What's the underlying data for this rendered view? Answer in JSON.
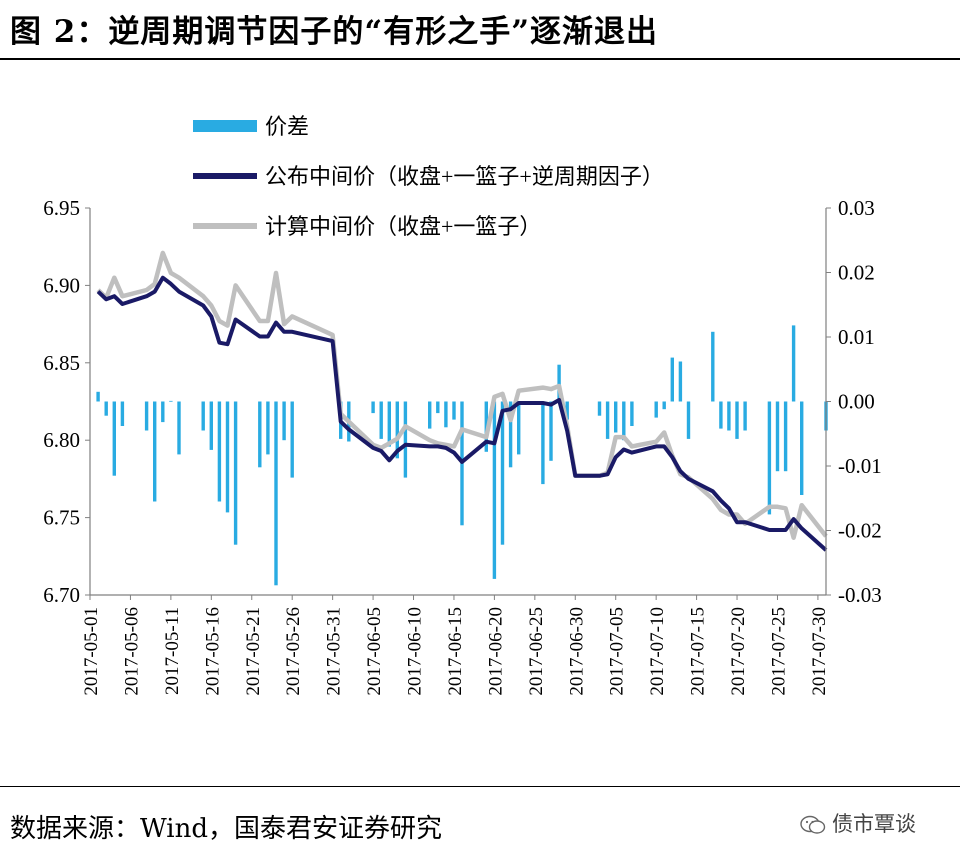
{
  "figure": {
    "title": "图 2：逆周期调节因子的“有形之手”逐渐退出",
    "source": "数据来源：Wind，国泰君安证券研究",
    "watermark": "债市覃谈",
    "watermark_icon": "wechat-icon"
  },
  "chart_data": {
    "type": "line",
    "title": "",
    "left_axis": {
      "ylim": [
        6.7,
        6.95
      ],
      "ticks": [
        "6.70",
        "6.75",
        "6.80",
        "6.85",
        "6.90",
        "6.95"
      ]
    },
    "right_axis": {
      "ylim": [
        -0.03,
        0.03
      ],
      "ticks": [
        "-0.03",
        "-0.02",
        "-0.01",
        "0.00",
        "0.01",
        "0.02",
        "0.03"
      ]
    },
    "x_tick_labels": [
      "2017-05-01",
      "2017-05-06",
      "2017-05-11",
      "2017-05-16",
      "2017-05-21",
      "2017-05-26",
      "2017-05-31",
      "2017-06-05",
      "2017-06-10",
      "2017-06-15",
      "2017-06-20",
      "2017-06-25",
      "2017-06-30",
      "2017-07-05",
      "2017-07-10",
      "2017-07-15",
      "2017-07-20",
      "2017-07-25",
      "2017-07-30"
    ],
    "x_range": [
      "2017-05-01",
      "2017-07-31"
    ],
    "legend_position": "top-left",
    "grid": false,
    "colors": {
      "bar": "#29ABE2",
      "published": "#1A1A66",
      "computed": "#BFBFBF"
    },
    "series": [
      {
        "name": "价差",
        "type": "bar",
        "axis": "right",
        "points": [
          [
            "2017-05-02",
            0.0015
          ],
          [
            "2017-05-03",
            -0.0022
          ],
          [
            "2017-05-04",
            -0.0115
          ],
          [
            "2017-05-05",
            -0.0038
          ],
          [
            "2017-05-08",
            -0.0045
          ],
          [
            "2017-05-09",
            -0.0155
          ],
          [
            "2017-05-10",
            -0.0032
          ],
          [
            "2017-05-11",
            0.0001
          ],
          [
            "2017-05-12",
            -0.0082
          ],
          [
            "2017-05-15",
            -0.0045
          ],
          [
            "2017-05-16",
            -0.0075
          ],
          [
            "2017-05-17",
            -0.0155
          ],
          [
            "2017-05-18",
            -0.0172
          ],
          [
            "2017-05-19",
            -0.0222
          ],
          [
            "2017-05-22",
            -0.0102
          ],
          [
            "2017-05-23",
            -0.0082
          ],
          [
            "2017-05-24",
            -0.0285
          ],
          [
            "2017-05-25",
            -0.006
          ],
          [
            "2017-05-26",
            -0.0118
          ],
          [
            "2017-06-01",
            -0.0058
          ],
          [
            "2017-06-02",
            -0.0062
          ],
          [
            "2017-06-05",
            -0.0018
          ],
          [
            "2017-06-06",
            -0.0058
          ],
          [
            "2017-06-07",
            -0.007
          ],
          [
            "2017-06-08",
            -0.0088
          ],
          [
            "2017-06-09",
            -0.0118
          ],
          [
            "2017-06-12",
            -0.0042
          ],
          [
            "2017-06-13",
            -0.0018
          ],
          [
            "2017-06-14",
            -0.004
          ],
          [
            "2017-06-15",
            -0.0028
          ],
          [
            "2017-06-16",
            -0.0192
          ],
          [
            "2017-06-19",
            -0.0078
          ],
          [
            "2017-06-20",
            -0.0275
          ],
          [
            "2017-06-21",
            -0.0222
          ],
          [
            "2017-06-22",
            -0.0102
          ],
          [
            "2017-06-23",
            -0.0082
          ],
          [
            "2017-06-26",
            -0.0128
          ],
          [
            "2017-06-27",
            -0.0092
          ],
          [
            "2017-06-28",
            0.0057
          ],
          [
            "2017-06-29",
            -0.0028
          ],
          [
            "2017-07-03",
            -0.0022
          ],
          [
            "2017-07-04",
            -0.0058
          ],
          [
            "2017-07-05",
            -0.0048
          ],
          [
            "2017-07-06",
            -0.006
          ],
          [
            "2017-07-07",
            -0.0038
          ],
          [
            "2017-07-10",
            -0.0025
          ],
          [
            "2017-07-11",
            -0.0012
          ],
          [
            "2017-07-12",
            0.0068
          ],
          [
            "2017-07-13",
            0.0062
          ],
          [
            "2017-07-14",
            -0.0058
          ],
          [
            "2017-07-17",
            0.0108
          ],
          [
            "2017-07-18",
            -0.0042
          ],
          [
            "2017-07-19",
            -0.0045
          ],
          [
            "2017-07-20",
            -0.0058
          ],
          [
            "2017-07-21",
            -0.0045
          ],
          [
            "2017-07-24",
            -0.0175
          ],
          [
            "2017-07-25",
            -0.0108
          ],
          [
            "2017-07-26",
            -0.0108
          ],
          [
            "2017-07-27",
            0.0118
          ],
          [
            "2017-07-28",
            -0.0145
          ],
          [
            "2017-07-31",
            -0.0045
          ]
        ]
      },
      {
        "name": "公布中间价（收盘+一篮子+逆周期因子）",
        "type": "line",
        "axis": "left",
        "points": [
          [
            "2017-05-02",
            6.896
          ],
          [
            "2017-05-03",
            6.891
          ],
          [
            "2017-05-04",
            6.893
          ],
          [
            "2017-05-05",
            6.888
          ],
          [
            "2017-05-08",
            6.893
          ],
          [
            "2017-05-09",
            6.896
          ],
          [
            "2017-05-10",
            6.905
          ],
          [
            "2017-05-11",
            6.901
          ],
          [
            "2017-05-12",
            6.896
          ],
          [
            "2017-05-15",
            6.887
          ],
          [
            "2017-05-16",
            6.88
          ],
          [
            "2017-05-17",
            6.863
          ],
          [
            "2017-05-18",
            6.862
          ],
          [
            "2017-05-19",
            6.878
          ],
          [
            "2017-05-22",
            6.867
          ],
          [
            "2017-05-23",
            6.867
          ],
          [
            "2017-05-24",
            6.876
          ],
          [
            "2017-05-25",
            6.87
          ],
          [
            "2017-05-26",
            6.87
          ],
          [
            "2017-05-31",
            6.864
          ],
          [
            "2017-06-01",
            6.812
          ],
          [
            "2017-06-02",
            6.807
          ],
          [
            "2017-06-05",
            6.795
          ],
          [
            "2017-06-06",
            6.793
          ],
          [
            "2017-06-07",
            6.787
          ],
          [
            "2017-06-08",
            6.793
          ],
          [
            "2017-06-09",
            6.797
          ],
          [
            "2017-06-12",
            6.796
          ],
          [
            "2017-06-13",
            6.796
          ],
          [
            "2017-06-14",
            6.795
          ],
          [
            "2017-06-15",
            6.792
          ],
          [
            "2017-06-16",
            6.786
          ],
          [
            "2017-06-19",
            6.799
          ],
          [
            "2017-06-20",
            6.798
          ],
          [
            "2017-06-21",
            6.819
          ],
          [
            "2017-06-22",
            6.82
          ],
          [
            "2017-06-23",
            6.824
          ],
          [
            "2017-06-26",
            6.824
          ],
          [
            "2017-06-27",
            6.823
          ],
          [
            "2017-06-28",
            6.826
          ],
          [
            "2017-06-29",
            6.806
          ],
          [
            "2017-06-30",
            6.777
          ],
          [
            "2017-07-03",
            6.777
          ],
          [
            "2017-07-04",
            6.778
          ],
          [
            "2017-07-05",
            6.789
          ],
          [
            "2017-07-06",
            6.794
          ],
          [
            "2017-07-07",
            6.792
          ],
          [
            "2017-07-10",
            6.796
          ],
          [
            "2017-07-11",
            6.796
          ],
          [
            "2017-07-12",
            6.789
          ],
          [
            "2017-07-13",
            6.78
          ],
          [
            "2017-07-14",
            6.775
          ],
          [
            "2017-07-17",
            6.767
          ],
          [
            "2017-07-18",
            6.761
          ],
          [
            "2017-07-19",
            6.756
          ],
          [
            "2017-07-20",
            6.747
          ],
          [
            "2017-07-21",
            6.747
          ],
          [
            "2017-07-24",
            6.742
          ],
          [
            "2017-07-25",
            6.742
          ],
          [
            "2017-07-26",
            6.742
          ],
          [
            "2017-07-27",
            6.749
          ],
          [
            "2017-07-28",
            6.743
          ],
          [
            "2017-07-31",
            6.729
          ]
        ]
      },
      {
        "name": "计算中间价（收盘+一篮子）",
        "type": "line",
        "axis": "left",
        "points": [
          [
            "2017-05-02",
            6.897
          ],
          [
            "2017-05-03",
            6.892
          ],
          [
            "2017-05-04",
            6.905
          ],
          [
            "2017-05-05",
            6.893
          ],
          [
            "2017-05-08",
            6.897
          ],
          [
            "2017-05-09",
            6.901
          ],
          [
            "2017-05-10",
            6.921
          ],
          [
            "2017-05-11",
            6.908
          ],
          [
            "2017-05-12",
            6.905
          ],
          [
            "2017-05-15",
            6.893
          ],
          [
            "2017-05-16",
            6.887
          ],
          [
            "2017-05-17",
            6.877
          ],
          [
            "2017-05-18",
            6.874
          ],
          [
            "2017-05-19",
            6.9
          ],
          [
            "2017-05-22",
            6.877
          ],
          [
            "2017-05-23",
            6.877
          ],
          [
            "2017-05-24",
            6.908
          ],
          [
            "2017-05-25",
            6.875
          ],
          [
            "2017-05-26",
            6.88
          ],
          [
            "2017-05-31",
            6.868
          ],
          [
            "2017-06-01",
            6.817
          ],
          [
            "2017-06-02",
            6.812
          ],
          [
            "2017-06-05",
            6.797
          ],
          [
            "2017-06-06",
            6.795
          ],
          [
            "2017-06-07",
            6.798
          ],
          [
            "2017-06-08",
            6.801
          ],
          [
            "2017-06-09",
            6.809
          ],
          [
            "2017-06-12",
            6.8
          ],
          [
            "2017-06-13",
            6.798
          ],
          [
            "2017-06-14",
            6.797
          ],
          [
            "2017-06-15",
            6.796
          ],
          [
            "2017-06-16",
            6.807
          ],
          [
            "2017-06-19",
            6.802
          ],
          [
            "2017-06-20",
            6.828
          ],
          [
            "2017-06-21",
            6.83
          ],
          [
            "2017-06-22",
            6.813
          ],
          [
            "2017-06-23",
            6.832
          ],
          [
            "2017-06-26",
            6.834
          ],
          [
            "2017-06-27",
            6.833
          ],
          [
            "2017-06-28",
            6.835
          ],
          [
            "2017-06-29",
            6.809
          ],
          [
            "2017-06-30",
            6.777
          ],
          [
            "2017-07-03",
            6.777
          ],
          [
            "2017-07-04",
            6.779
          ],
          [
            "2017-07-05",
            6.802
          ],
          [
            "2017-07-06",
            6.802
          ],
          [
            "2017-07-07",
            6.796
          ],
          [
            "2017-07-10",
            6.799
          ],
          [
            "2017-07-11",
            6.805
          ],
          [
            "2017-07-12",
            6.79
          ],
          [
            "2017-07-13",
            6.778
          ],
          [
            "2017-07-14",
            6.776
          ],
          [
            "2017-07-17",
            6.762
          ],
          [
            "2017-07-18",
            6.755
          ],
          [
            "2017-07-19",
            6.752
          ],
          [
            "2017-07-20",
            6.752
          ],
          [
            "2017-07-21",
            6.746
          ],
          [
            "2017-07-24",
            6.757
          ],
          [
            "2017-07-25",
            6.757
          ],
          [
            "2017-07-26",
            6.756
          ],
          [
            "2017-07-27",
            6.737
          ],
          [
            "2017-07-28",
            6.758
          ],
          [
            "2017-07-31",
            6.738
          ]
        ]
      }
    ]
  }
}
